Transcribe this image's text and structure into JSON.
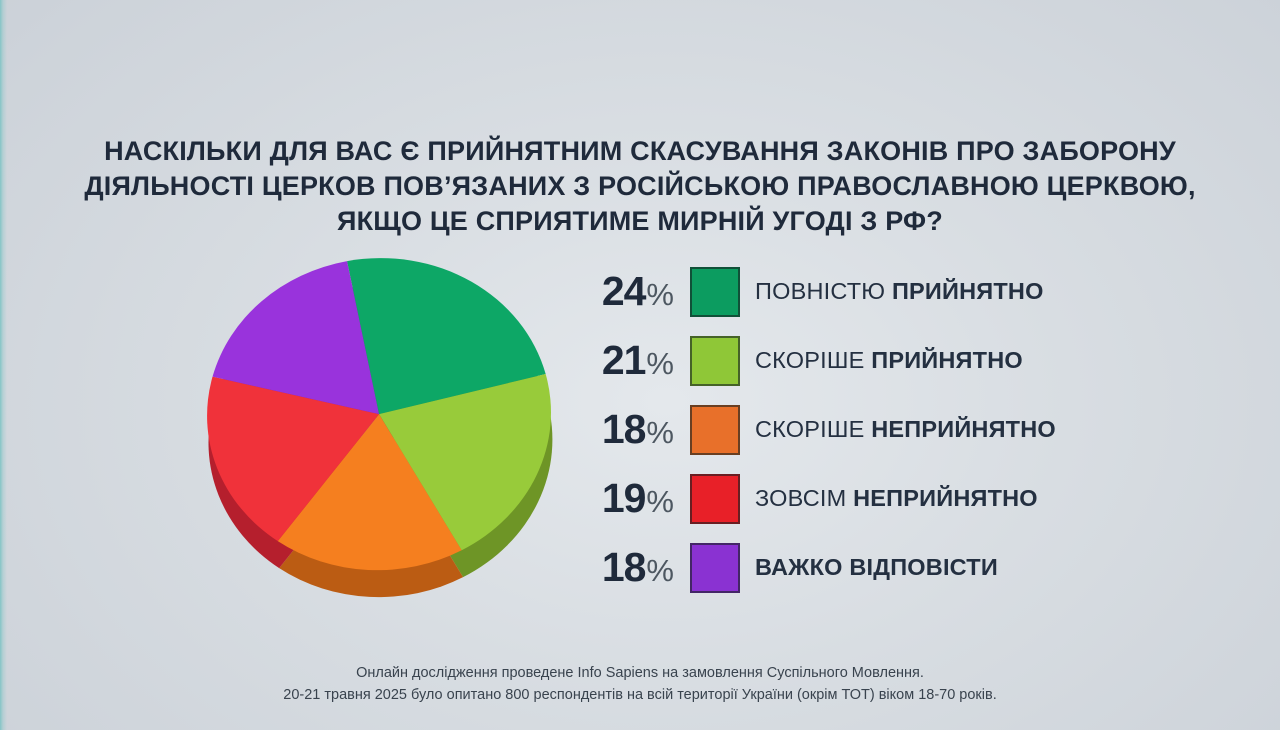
{
  "title": {
    "lines": [
      "НАСКІЛЬКИ ДЛЯ ВАС Є ПРИЙНЯТНИМ СКАСУВАННЯ ЗАКОНІВ ПРО ЗАБОРОНУ",
      "ДІЯЛЬНОСТІ ЦЕРКОВ ПОВ’ЯЗАНИХ З РОСІЙСЬКОЮ ПРАВОСЛАВНОЮ ЦЕРКВОЮ,",
      "ЯКЩО ЦЕ СПРИЯТИМЕ МИРНІЙ УГОДІ З РФ?"
    ],
    "color": "#1f2a3b"
  },
  "chart_data": {
    "type": "pie",
    "title": "Наскільки для вас є прийнятним скасування законів про заборону діяльності церков пов’язаних з російською православною церквою, якщо це сприятиме мирній угоді з РФ?",
    "unit": "%",
    "style": "3d",
    "start_angle_deg": -8,
    "direction": "clockwise",
    "legend_position": "right",
    "slices": [
      {
        "value": 24,
        "percent_text": "24",
        "word1": "ПОВНІСТЮ",
        "word2": "ПРИЙНЯТНО",
        "word1_bold": false,
        "color": "#0da766",
        "legend_color": "#0c9c60",
        "shade": "#0a7549"
      },
      {
        "value": 21,
        "percent_text": "21",
        "word1": "СКОРІШЕ",
        "word2": "ПРИЙНЯТНО",
        "word1_bold": false,
        "color": "#98cb3a",
        "legend_color": "#8fc737",
        "shade": "#6e9526"
      },
      {
        "value": 18,
        "percent_text": "18",
        "word1": "СКОРІШЕ",
        "word2": "НЕПРИЙНЯТНО",
        "word1_bold": false,
        "color": "#f57f1f",
        "legend_color": "#e8702a",
        "shade": "#bb5c13"
      },
      {
        "value": 19,
        "percent_text": "19",
        "word1": "ЗОВСІМ",
        "word2": "НЕПРИЙНЯТНО",
        "word1_bold": false,
        "color": "#f0323a",
        "legend_color": "#e82028",
        "shade": "#b51f2d"
      },
      {
        "value": 18,
        "percent_text": "18",
        "word1": "ВАЖКО",
        "word2": "ВІДПОВІСТИ",
        "word1_bold": true,
        "color": "#9933dc",
        "legend_color": "#8a32d2",
        "shade": "#6e21a0"
      }
    ],
    "percent_sign": "%"
  },
  "footer": {
    "lines": [
      "Онлайн дослідження проведене Info Sapiens на замовлення Суспільного Мовлення.",
      "20-21 травня 2025 було опитано 800 респондентів на всій території України (окрім ТОТ) віком 18-70 років."
    ]
  },
  "colors": {
    "background_center": "#e4e8ec",
    "background_edge": "#cbd1d8",
    "left_accent": "#84c5c6",
    "ink": "#1f2a3b",
    "percent_sign": "#4d5761",
    "footer_text": "#39434e"
  }
}
